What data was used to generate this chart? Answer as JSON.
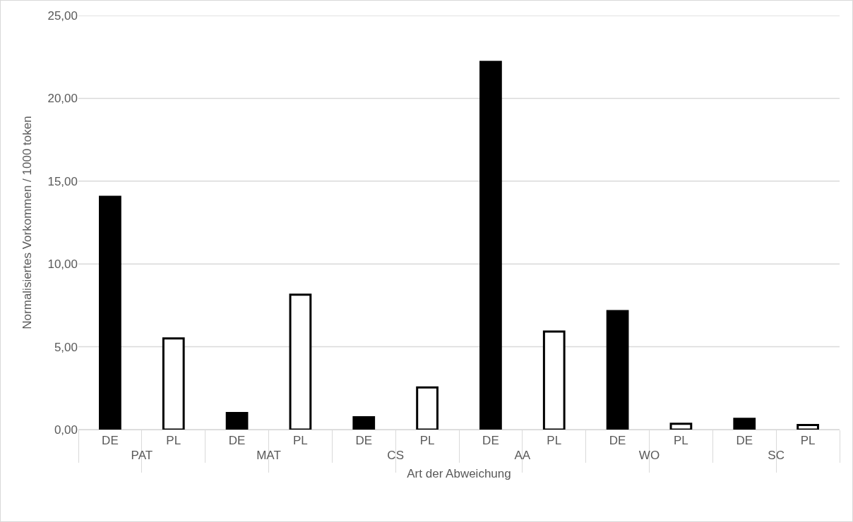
{
  "chart_data": {
    "type": "bar",
    "xlabel": "Art der Abweichung",
    "ylabel": "Normalisiertes Vorkommen / 1000 token",
    "categories": [
      "PAT",
      "MAT",
      "CS",
      "AA",
      "WO",
      "SC"
    ],
    "series": [
      {
        "name": "DE",
        "color": "#000000",
        "values": [
          14.05,
          1.0,
          0.74,
          22.2,
          7.15,
          0.65
        ]
      },
      {
        "name": "PL",
        "color": "#ffffff",
        "values": [
          5.5,
          8.15,
          2.55,
          5.92,
          0.35,
          0.28
        ]
      }
    ],
    "ylim": [
      0,
      25
    ],
    "yticks": [
      {
        "value": 0,
        "label": "0,00"
      },
      {
        "value": 5,
        "label": "5,00"
      },
      {
        "value": 10,
        "label": "10,00"
      },
      {
        "value": 15,
        "label": "15,00"
      },
      {
        "value": 20,
        "label": "20,00"
      },
      {
        "value": 25,
        "label": "25,00"
      }
    ],
    "grid": "y",
    "legend": false
  }
}
